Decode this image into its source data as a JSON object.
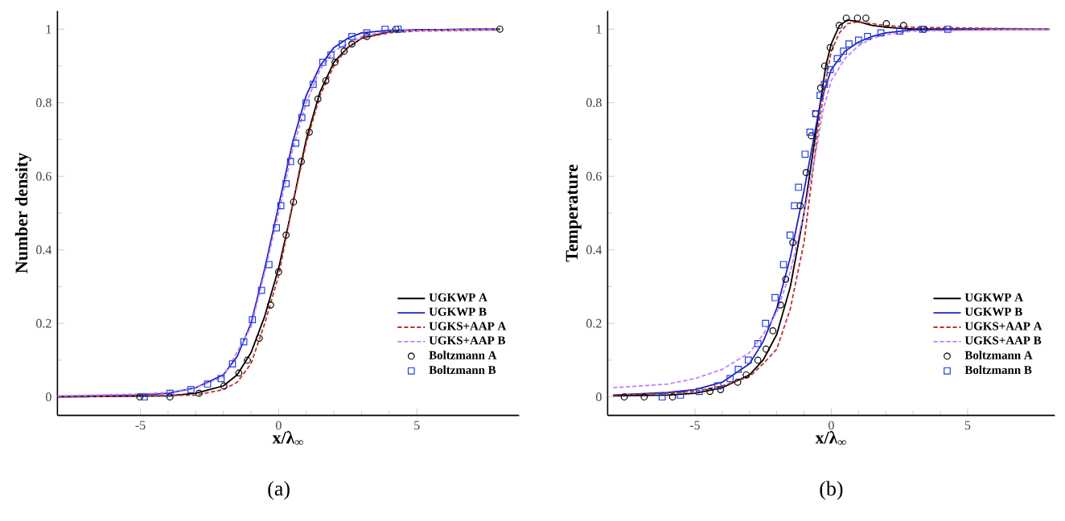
{
  "chart_data": [
    {
      "type": "line",
      "xlabel": "x/λ$_{∞}$",
      "ylabel": "Number density",
      "annotations": [
        "(a)"
      ],
      "xlim": [
        -8,
        8.7
      ],
      "ylim": [
        -0.05,
        1.05
      ],
      "xticks": [
        -5,
        0,
        5
      ],
      "yticks": [
        0,
        0.2,
        0.4,
        0.6,
        0.8,
        1
      ],
      "grid": false,
      "legend": "bottom right",
      "series": [
        {
          "name": "UGKWP A",
          "line_style": "solid",
          "color": "#000000",
          "x": [
            -8,
            -4,
            -3,
            -2,
            -1.5,
            -1,
            -0.5,
            0,
            0.3,
            0.5,
            0.8,
            1,
            1.5,
            2,
            2.5,
            3,
            4,
            5,
            8
          ],
          "values": [
            0,
            0.003,
            0.01,
            0.03,
            0.06,
            0.12,
            0.22,
            0.35,
            0.45,
            0.52,
            0.63,
            0.7,
            0.83,
            0.91,
            0.95,
            0.975,
            0.993,
            0.998,
            1
          ]
        },
        {
          "name": "UGKWP B",
          "line_style": "solid",
          "color": "#2020c0",
          "x": [
            -8,
            -5,
            -4,
            -3,
            -2,
            -1.5,
            -1,
            -0.5,
            0,
            0.5,
            1,
            1.5,
            2,
            2.5,
            3,
            4,
            8
          ],
          "values": [
            0.002,
            0.005,
            0.01,
            0.025,
            0.06,
            0.11,
            0.2,
            0.35,
            0.52,
            0.69,
            0.82,
            0.9,
            0.95,
            0.975,
            0.99,
            0.997,
            1
          ]
        },
        {
          "name": "UGKS+AAP A",
          "line_style": "dashed",
          "color": "#c03030",
          "x": [
            -8,
            -3,
            -2,
            -1.5,
            -1,
            -0.5,
            0,
            0.5,
            1,
            1.5,
            2,
            2.5,
            3,
            4,
            5,
            8
          ],
          "values": [
            0,
            0.005,
            0.02,
            0.04,
            0.09,
            0.2,
            0.33,
            0.52,
            0.69,
            0.82,
            0.9,
            0.95,
            0.975,
            0.99,
            0.995,
            0.998
          ]
        },
        {
          "name": "UGKS+AAP B",
          "line_style": "dashed",
          "color": "#c080ff",
          "x": [
            -8,
            -5,
            -4,
            -3,
            -2,
            -1,
            -0.5,
            0,
            0.5,
            1,
            1.5,
            2,
            3,
            4,
            8
          ],
          "values": [
            0.003,
            0.008,
            0.012,
            0.025,
            0.055,
            0.19,
            0.34,
            0.5,
            0.67,
            0.8,
            0.89,
            0.94,
            0.98,
            0.995,
            1
          ]
        },
        {
          "name": "Boltzmann A",
          "type": "scatter",
          "marker": "circle",
          "color": "#000000",
          "x": [
            -5.02,
            -3.93,
            -2.88,
            -1.98,
            -1.44,
            -1.13,
            -0.7,
            -0.29,
            0,
            0.27,
            0.54,
            0.82,
            1.11,
            1.42,
            1.71,
            2.04,
            2.37,
            2.65,
            3.19,
            4.24,
            8
          ],
          "values": [
            0,
            0,
            0.01,
            0.03,
            0.065,
            0.1,
            0.16,
            0.25,
            0.34,
            0.44,
            0.53,
            0.64,
            0.72,
            0.81,
            0.86,
            0.91,
            0.94,
            0.96,
            0.98,
            1,
            1
          ]
        },
        {
          "name": "Boltzmann B",
          "type": "scatter",
          "marker": "square",
          "color": "#2040e0",
          "x": [
            -4.86,
            -3.93,
            -3.17,
            -2.57,
            -2.08,
            -1.67,
            -1.26,
            -0.95,
            -0.62,
            -0.35,
            -0.08,
            0.08,
            0.27,
            0.43,
            0.62,
            0.84,
            0.99,
            1.25,
            1.6,
            1.89,
            2.3,
            2.65,
            3.19,
            3.85,
            4.32
          ],
          "values": [
            0,
            0.01,
            0.02,
            0.035,
            0.05,
            0.09,
            0.15,
            0.21,
            0.29,
            0.36,
            0.46,
            0.52,
            0.58,
            0.64,
            0.69,
            0.76,
            0.8,
            0.85,
            0.91,
            0.93,
            0.96,
            0.98,
            0.99,
            1,
            1
          ]
        }
      ]
    },
    {
      "type": "line",
      "xlabel": "x/λ$_{∞}$",
      "ylabel": "Temperature",
      "annotations": [
        "(b)"
      ],
      "xlim": [
        -8.2,
        8.2
      ],
      "ylim": [
        -0.05,
        1.05
      ],
      "xticks": [
        -5,
        0,
        5
      ],
      "yticks": [
        0,
        0.2,
        0.4,
        0.6,
        0.8,
        1
      ],
      "grid": false,
      "legend": "bottom right",
      "series": [
        {
          "name": "UGKWP A",
          "line_style": "solid",
          "color": "#000000",
          "x": [
            -8,
            -6,
            -5,
            -4,
            -3,
            -2.5,
            -2,
            -1.5,
            -1,
            -0.7,
            -0.4,
            -0.2,
            0,
            0.3,
            0.6,
            1,
            1.5,
            2,
            3,
            8
          ],
          "values": [
            0.003,
            0.005,
            0.01,
            0.025,
            0.06,
            0.1,
            0.17,
            0.3,
            0.5,
            0.65,
            0.8,
            0.9,
            0.96,
            1.01,
            1.025,
            1.02,
            1.01,
            1.005,
            1,
            1
          ]
        },
        {
          "name": "UGKWP B",
          "line_style": "solid",
          "color": "#2020c0",
          "x": [
            -8,
            -6,
            -5,
            -4,
            -3,
            -2.5,
            -2,
            -1.5,
            -1,
            -0.7,
            -0.4,
            0,
            0.5,
            1,
            1.5,
            2,
            3,
            8
          ],
          "values": [
            0.005,
            0.012,
            0.02,
            0.04,
            0.09,
            0.15,
            0.24,
            0.38,
            0.56,
            0.68,
            0.8,
            0.89,
            0.94,
            0.965,
            0.98,
            0.99,
            0.998,
            1
          ]
        },
        {
          "name": "UGKS+AAP A",
          "line_style": "dashed",
          "color": "#c03030",
          "x": [
            -8,
            -6,
            -5,
            -4,
            -3,
            -2.5,
            -2,
            -1.5,
            -1,
            -0.7,
            -0.5,
            -0.2,
            0,
            0.3,
            0.6,
            1,
            1.5,
            2,
            3,
            8
          ],
          "values": [
            0.005,
            0.01,
            0.015,
            0.03,
            0.055,
            0.09,
            0.13,
            0.24,
            0.42,
            0.6,
            0.72,
            0.86,
            0.94,
            0.99,
            1.015,
            1.02,
            1.015,
            1.01,
            1.005,
            1
          ]
        },
        {
          "name": "UGKS+AAP B",
          "line_style": "dashed",
          "color": "#c080ff",
          "x": [
            -8,
            -6,
            -5,
            -4,
            -3,
            -2.5,
            -2,
            -1.5,
            -1,
            -0.6,
            -0.3,
            0,
            0.5,
            1,
            1.5,
            2,
            3,
            8
          ],
          "values": [
            0.025,
            0.035,
            0.05,
            0.075,
            0.12,
            0.17,
            0.23,
            0.34,
            0.5,
            0.65,
            0.78,
            0.86,
            0.92,
            0.955,
            0.975,
            0.985,
            0.995,
            1
          ]
        },
        {
          "name": "Boltzmann A",
          "type": "scatter",
          "marker": "circle",
          "color": "#000000",
          "x": [
            -7.59,
            -6.86,
            -5.82,
            -4.45,
            -4.06,
            -3.43,
            -3.12,
            -2.69,
            -2.39,
            -2.14,
            -1.86,
            -1.67,
            -1.41,
            -1.14,
            -0.92,
            -0.73,
            -0.57,
            -0.39,
            -0.24,
            -0.04,
            0.29,
            0.55,
            0.96,
            1.27,
            2.02,
            2.65,
            3.4
          ],
          "values": [
            0,
            0,
            0,
            0.015,
            0.02,
            0.04,
            0.06,
            0.1,
            0.13,
            0.18,
            0.25,
            0.32,
            0.42,
            0.52,
            0.61,
            0.71,
            0.77,
            0.84,
            0.9,
            0.95,
            1.01,
            1.03,
            1.03,
            1.03,
            1.015,
            1.01,
            1
          ]
        },
        {
          "name": "Boltzmann B",
          "type": "scatter",
          "marker": "square",
          "color": "#2040e0",
          "x": [
            -6.2,
            -5.53,
            -4.84,
            -4.16,
            -3.71,
            -3.41,
            -3.04,
            -2.69,
            -2.41,
            -2.06,
            -1.75,
            -1.51,
            -1.35,
            -1.2,
            -0.96,
            -0.78,
            -0.57,
            -0.41,
            -0.25,
            -0.04,
            0.22,
            0.45,
            0.65,
            1,
            1.33,
            1.82,
            2.51,
            3.35,
            4.27
          ],
          "values": [
            0,
            0.005,
            0.015,
            0.03,
            0.05,
            0.075,
            0.1,
            0.145,
            0.2,
            0.27,
            0.36,
            0.44,
            0.52,
            0.57,
            0.66,
            0.72,
            0.77,
            0.82,
            0.85,
            0.89,
            0.92,
            0.94,
            0.96,
            0.97,
            0.98,
            0.99,
            0.995,
            1,
            1
          ]
        }
      ]
    }
  ]
}
